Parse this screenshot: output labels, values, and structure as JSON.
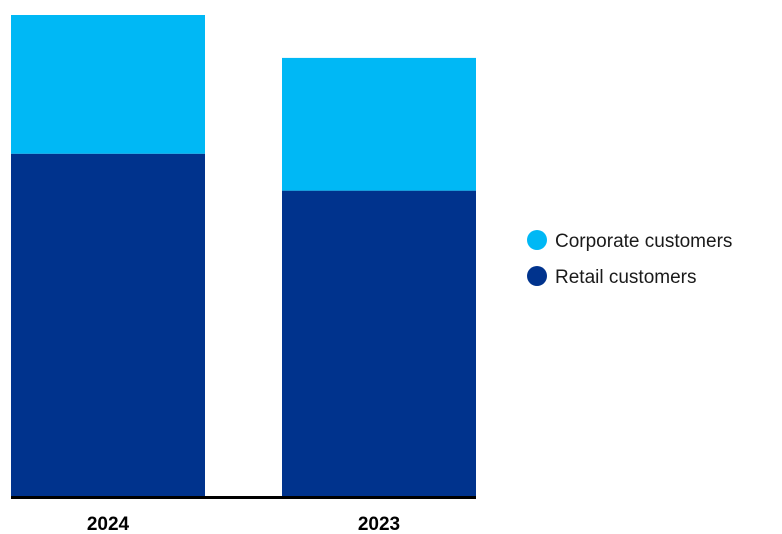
{
  "chart_data": {
    "type": "bar",
    "stacked": true,
    "categories": [
      "2024",
      "2023"
    ],
    "series": [
      {
        "name": "Retail customers",
        "values": [
          343,
          306
        ],
        "color": "#00338d"
      },
      {
        "name": "Corporate customers",
        "values": [
          139,
          133
        ],
        "color": "#00b8f5"
      }
    ],
    "ylim": [
      0,
      482
    ],
    "legend_position": "right",
    "grid": false,
    "axis_color": "#000000"
  }
}
